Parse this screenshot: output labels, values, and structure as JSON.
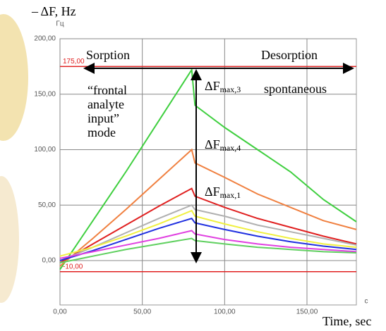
{
  "chart_data": {
    "type": "line",
    "y_axis_title": "– ΔF, Hz",
    "y_unit": "Гц",
    "x_unit": "c",
    "x_axis_title": "Time, sec",
    "annotations": {
      "sorption": "Sorption",
      "desorption": "Desorption",
      "mode": [
        "“frontal",
        "analyte",
        "input”",
        "mode"
      ],
      "spontaneous": "spontaneous",
      "df3": {
        "main": "ΔF",
        "sub": "max,3"
      },
      "df4": {
        "main": "ΔF",
        "sub": "max,4"
      },
      "df1": {
        "main": "ΔF",
        "sub": "max,1"
      }
    },
    "x": [
      0,
      20,
      40,
      60,
      80,
      82,
      100,
      120,
      140,
      160,
      180
    ],
    "series": [
      {
        "color": "#3fcf3f",
        "values": [
          -8,
          36,
          80,
          126,
          172,
          140,
          120,
          100,
          80,
          55,
          35
        ]
      },
      {
        "color": "#f08040",
        "values": [
          -5,
          20,
          46,
          73,
          100,
          88,
          75,
          60,
          48,
          36,
          28
        ]
      },
      {
        "color": "#e02020",
        "values": [
          -2,
          15,
          32,
          49,
          65,
          58,
          48,
          38,
          30,
          22,
          15
        ]
      },
      {
        "color": "#b0b0b0",
        "values": [
          0,
          12,
          25,
          38,
          50,
          46,
          40,
          32,
          26,
          20,
          14
        ]
      },
      {
        "color": "#f0f040",
        "values": [
          4,
          12,
          22,
          33,
          45,
          40,
          33,
          26,
          20,
          15,
          12
        ]
      },
      {
        "color": "#2030e0",
        "values": [
          0,
          9,
          19,
          29,
          38,
          34,
          28,
          22,
          17,
          13,
          10
        ]
      },
      {
        "color": "#e040e0",
        "values": [
          2,
          8,
          14,
          20,
          27,
          24,
          19,
          15,
          12,
          10,
          8
        ]
      },
      {
        "color": "#60d060",
        "values": [
          -2,
          4,
          10,
          15,
          20,
          18,
          15,
          12,
          10,
          8,
          7
        ]
      }
    ],
    "ref_lines": [
      {
        "value": 175,
        "label": "175,00"
      },
      {
        "value": -10,
        "label": "-10,00"
      }
    ],
    "ref_color": "#e02020",
    "xlim": [
      0,
      180
    ],
    "ylim": [
      -40,
      200
    ],
    "xticks": [
      {
        "value": 0,
        "label": "0,00"
      },
      {
        "value": 50,
        "label": "50,00"
      },
      {
        "value": 100,
        "label": "100,00"
      },
      {
        "value": 150,
        "label": "150,00"
      }
    ],
    "yticks": [
      {
        "value": 0,
        "label": "0,00"
      },
      {
        "value": 50,
        "label": "50,00"
      },
      {
        "value": 100,
        "label": "100,00"
      },
      {
        "value": 150,
        "label": "150,00"
      },
      {
        "value": 200,
        "label": "200,00"
      }
    ],
    "grid": true
  }
}
